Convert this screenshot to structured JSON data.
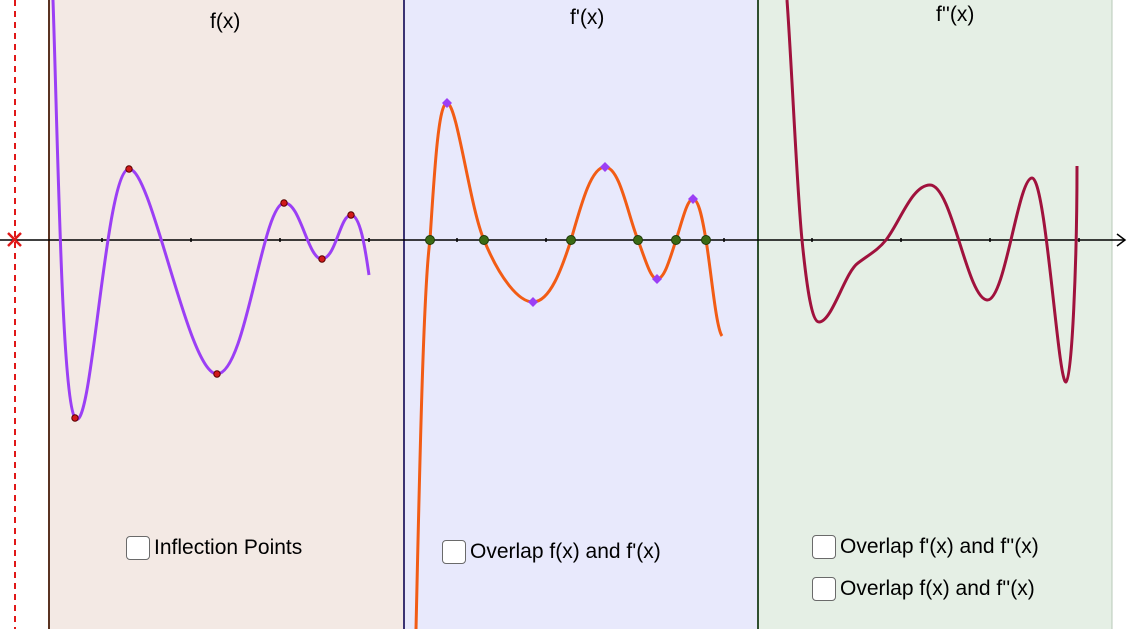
{
  "panels": [
    {
      "title": "f(x)",
      "fill": "#f3e9e4",
      "border": "#5a3322"
    },
    {
      "title": "f'(x)",
      "fill": "#e8e9fc",
      "border": "#3b3372"
    },
    {
      "title": "f''(x)",
      "fill": "#e5efe5",
      "border": "#2f4f2f"
    }
  ],
  "checkboxes": {
    "inflection": {
      "label": "Inflection Points",
      "checked": false
    },
    "overlap_f_fp": {
      "label": "Overlap f(x) and f'(x)",
      "checked": false
    },
    "overlap_fp_fpp": {
      "label": "Overlap f'(x) and f''(x)",
      "checked": false
    },
    "overlap_f_fpp": {
      "label": "Overlap f(x) and f''(x)",
      "checked": false
    }
  },
  "colors": {
    "f_curve": "#9b3ff5",
    "fp_curve": "#f25c15",
    "fpp_curve": "#a0123d",
    "extrema_point": "#d11a1a",
    "fp_extrema_point": "#9b3ff5",
    "zero_point": "#3a6a14",
    "slider_marker": "#e01818"
  },
  "icons": {
    "axis_arrow": "arrow-right-icon",
    "slider_marker": "cross-marker-icon"
  }
}
